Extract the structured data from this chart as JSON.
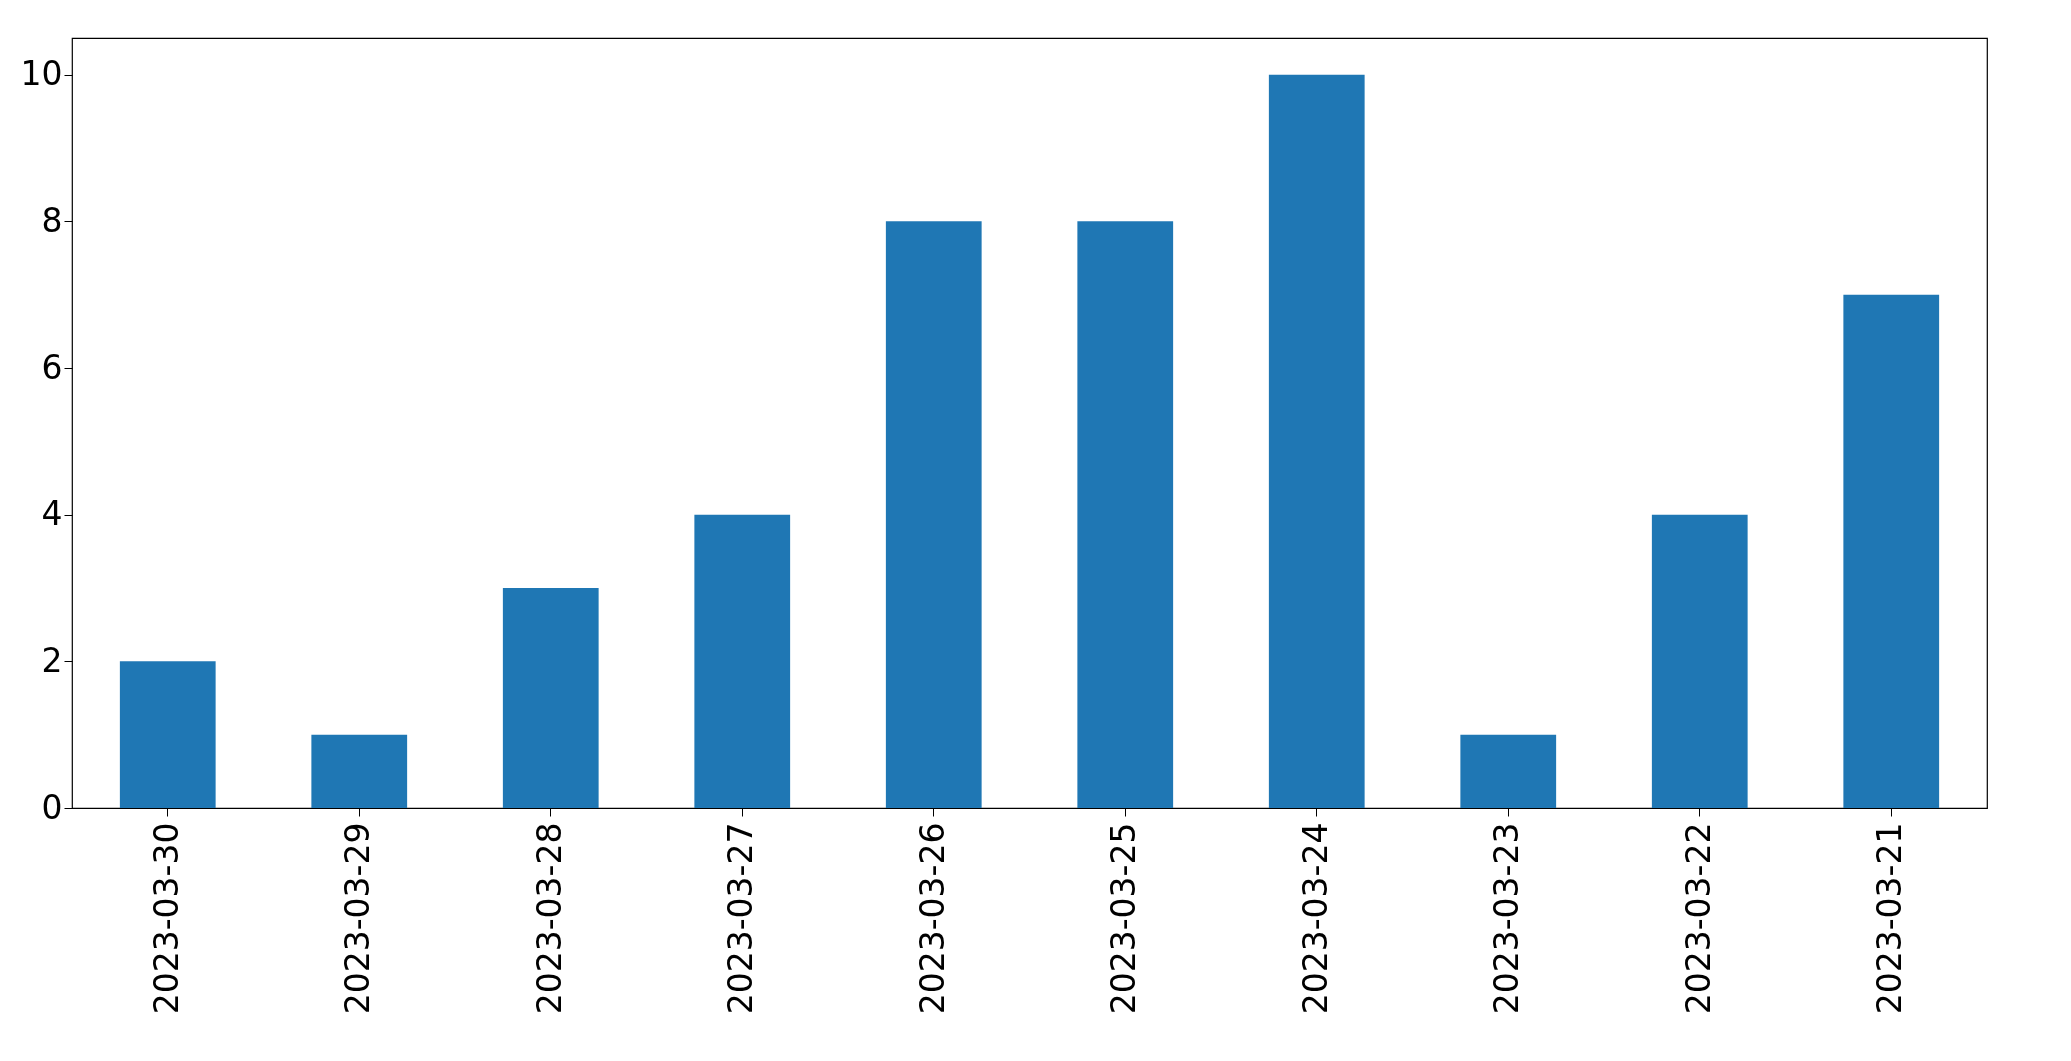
{
  "chart_data": {
    "type": "bar",
    "categories": [
      "2023-03-30",
      "2023-03-29",
      "2023-03-28",
      "2023-03-27",
      "2023-03-26",
      "2023-03-25",
      "2023-03-24",
      "2023-03-23",
      "2023-03-22",
      "2023-03-21"
    ],
    "values": [
      2,
      1,
      3,
      4,
      8,
      8,
      10,
      1,
      4,
      7
    ],
    "color": "#1f77b4",
    "ylim": [
      0,
      10.5
    ],
    "yticks": [
      0,
      2,
      4,
      6,
      8,
      10
    ],
    "grid": false
  }
}
